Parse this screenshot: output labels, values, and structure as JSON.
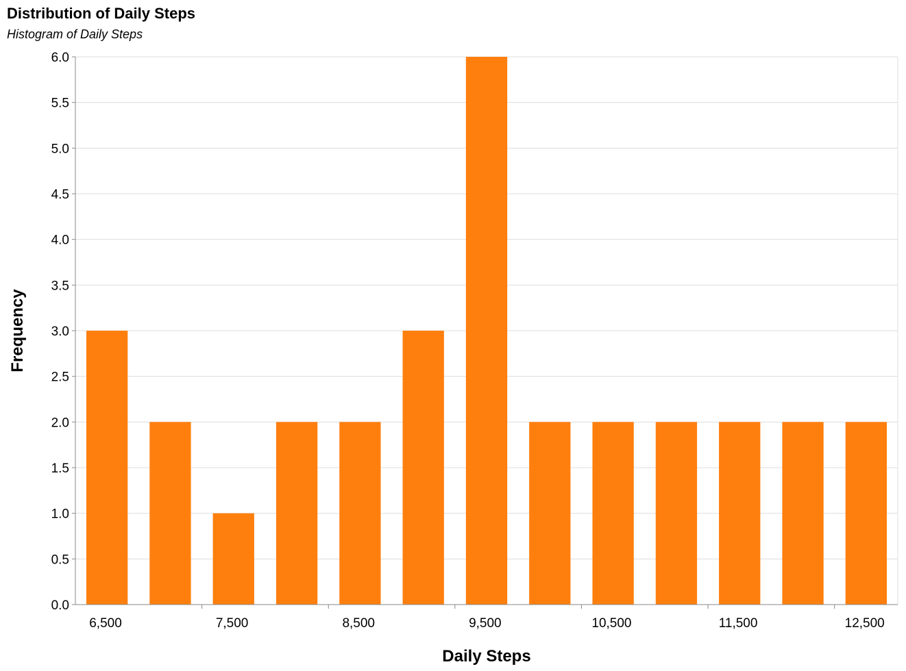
{
  "chart_data": {
    "type": "bar",
    "title": "Distribution of Daily Steps",
    "subtitle": "Histogram of Daily Steps",
    "xlabel": "Daily Steps",
    "ylabel": "Frequency",
    "bin_width": 500,
    "bins": [
      {
        "start": 6500,
        "end": 7000,
        "count": 3
      },
      {
        "start": 7000,
        "end": 7500,
        "count": 2
      },
      {
        "start": 7500,
        "end": 8000,
        "count": 1
      },
      {
        "start": 8000,
        "end": 8500,
        "count": 2
      },
      {
        "start": 8500,
        "end": 9000,
        "count": 2
      },
      {
        "start": 9000,
        "end": 9500,
        "count": 3
      },
      {
        "start": 9500,
        "end": 10000,
        "count": 6
      },
      {
        "start": 10000,
        "end": 10500,
        "count": 2
      },
      {
        "start": 10500,
        "end": 11000,
        "count": 2
      },
      {
        "start": 11000,
        "end": 11500,
        "count": 2
      },
      {
        "start": 11500,
        "end": 12000,
        "count": 2
      },
      {
        "start": 12000,
        "end": 12500,
        "count": 2
      },
      {
        "start": 12500,
        "end": 13000,
        "count": 2
      }
    ],
    "xlim": [
      6500,
      13000
    ],
    "ylim": [
      0,
      6
    ],
    "x_tick_labels": [
      "6,500",
      "7,500",
      "8,500",
      "9,500",
      "10,500",
      "11,500",
      "12,500"
    ],
    "y_tick_labels": [
      "0.0",
      "0.5",
      "1.0",
      "1.5",
      "2.0",
      "2.5",
      "3.0",
      "3.5",
      "4.0",
      "4.5",
      "5.0",
      "5.5",
      "6.0"
    ],
    "grid": true,
    "bar_color": "#ff7f0e",
    "grid_color": "#dddddd",
    "axis_color": "#888888"
  }
}
